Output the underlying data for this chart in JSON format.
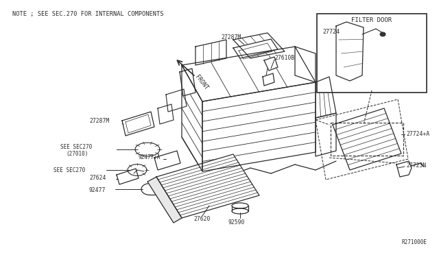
{
  "bg_color": "#ffffff",
  "line_color": "#2a2a2a",
  "note_text": "NOTE ; SEE SEC.270 FOR INTERNAL COMPONENTS",
  "ref_code": "R271000E",
  "filter_door_label": "FILTER DOOR",
  "figsize": [
    6.4,
    3.72
  ],
  "dpi": 100
}
